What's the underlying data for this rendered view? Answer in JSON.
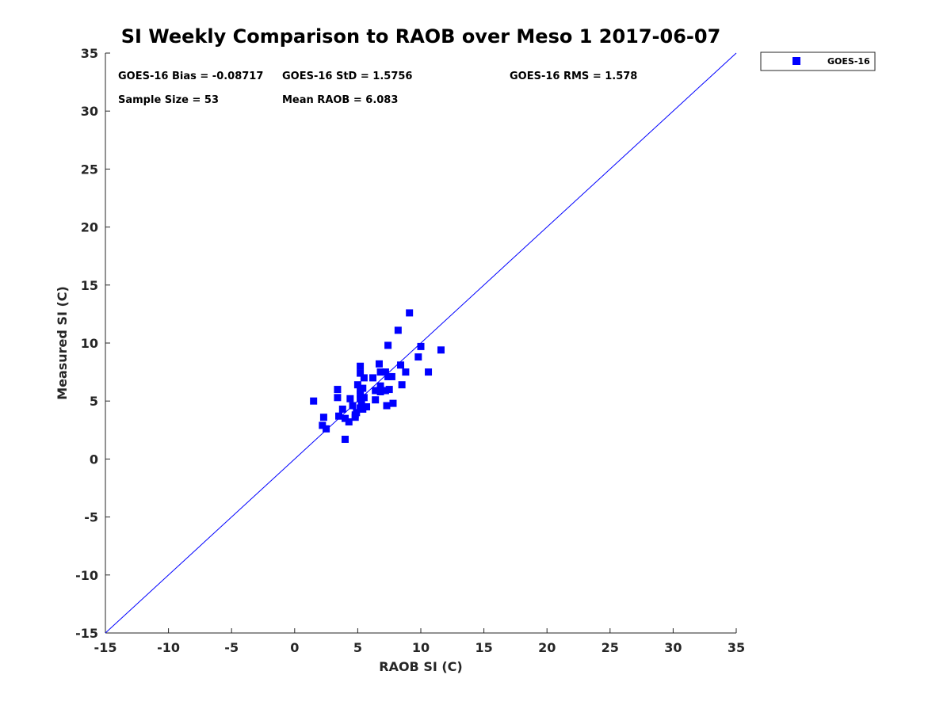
{
  "chart_data": {
    "type": "scatter",
    "title": "SI Weekly Comparison to RAOB over Meso 1 2017-06-07",
    "xlabel": "RAOB SI (C)",
    "ylabel": "Measured SI (C)",
    "xlim": [
      -15,
      35
    ],
    "ylim": [
      -15,
      35
    ],
    "xticks": [
      "-15",
      "-10",
      "-5",
      "0",
      "5",
      "10",
      "15",
      "20",
      "25",
      "30",
      "35"
    ],
    "yticks": [
      "-15",
      "-10",
      "-5",
      "0",
      "5",
      "10",
      "15",
      "20",
      "25",
      "30",
      "35"
    ],
    "reference_line": {
      "from": [
        -15,
        -15
      ],
      "to": [
        35,
        35
      ],
      "color": "#0000ff"
    },
    "stats": {
      "bias": "GOES-16 Bias = -0.08717",
      "std": "GOES-16 StD = 1.5756",
      "rms": "GOES-16 RMS = 1.578",
      "sample_size": "Sample Size = 53",
      "mean_raob": "Mean RAOB = 6.083"
    },
    "legend_position": "top-right outside",
    "series": [
      {
        "name": "GOES-16",
        "color": "#0000ff",
        "marker": "square",
        "points": [
          [
            1.5,
            5.0
          ],
          [
            2.2,
            2.9
          ],
          [
            2.3,
            3.6
          ],
          [
            2.5,
            2.6
          ],
          [
            3.4,
            6.0
          ],
          [
            3.4,
            5.3
          ],
          [
            3.5,
            3.7
          ],
          [
            3.8,
            4.3
          ],
          [
            4.0,
            3.5
          ],
          [
            4.0,
            1.7
          ],
          [
            4.3,
            3.2
          ],
          [
            4.4,
            5.2
          ],
          [
            4.6,
            4.6
          ],
          [
            4.8,
            3.8
          ],
          [
            4.8,
            3.6
          ],
          [
            4.9,
            4.0
          ],
          [
            5.0,
            6.4
          ],
          [
            5.2,
            8.0
          ],
          [
            5.2,
            7.4
          ],
          [
            5.2,
            5.9
          ],
          [
            5.2,
            5.6
          ],
          [
            5.2,
            5.2
          ],
          [
            5.2,
            4.4
          ],
          [
            5.3,
            4.9
          ],
          [
            5.4,
            6.1
          ],
          [
            5.4,
            4.3
          ],
          [
            5.5,
            7.0
          ],
          [
            5.5,
            5.3
          ],
          [
            5.7,
            4.5
          ],
          [
            6.2,
            7.0
          ],
          [
            6.4,
            5.9
          ],
          [
            6.4,
            5.1
          ],
          [
            6.7,
            8.2
          ],
          [
            6.8,
            7.5
          ],
          [
            6.8,
            6.3
          ],
          [
            6.8,
            5.8
          ],
          [
            7.2,
            7.5
          ],
          [
            7.2,
            5.9
          ],
          [
            7.3,
            4.6
          ],
          [
            7.4,
            9.8
          ],
          [
            7.4,
            7.1
          ],
          [
            7.5,
            6.0
          ],
          [
            7.7,
            7.1
          ],
          [
            7.8,
            4.8
          ],
          [
            8.2,
            11.1
          ],
          [
            8.4,
            8.1
          ],
          [
            8.5,
            6.4
          ],
          [
            8.8,
            7.5
          ],
          [
            9.1,
            12.6
          ],
          [
            9.8,
            8.8
          ],
          [
            10.0,
            9.7
          ],
          [
            10.6,
            7.5
          ],
          [
            11.6,
            9.4
          ]
        ]
      }
    ]
  }
}
